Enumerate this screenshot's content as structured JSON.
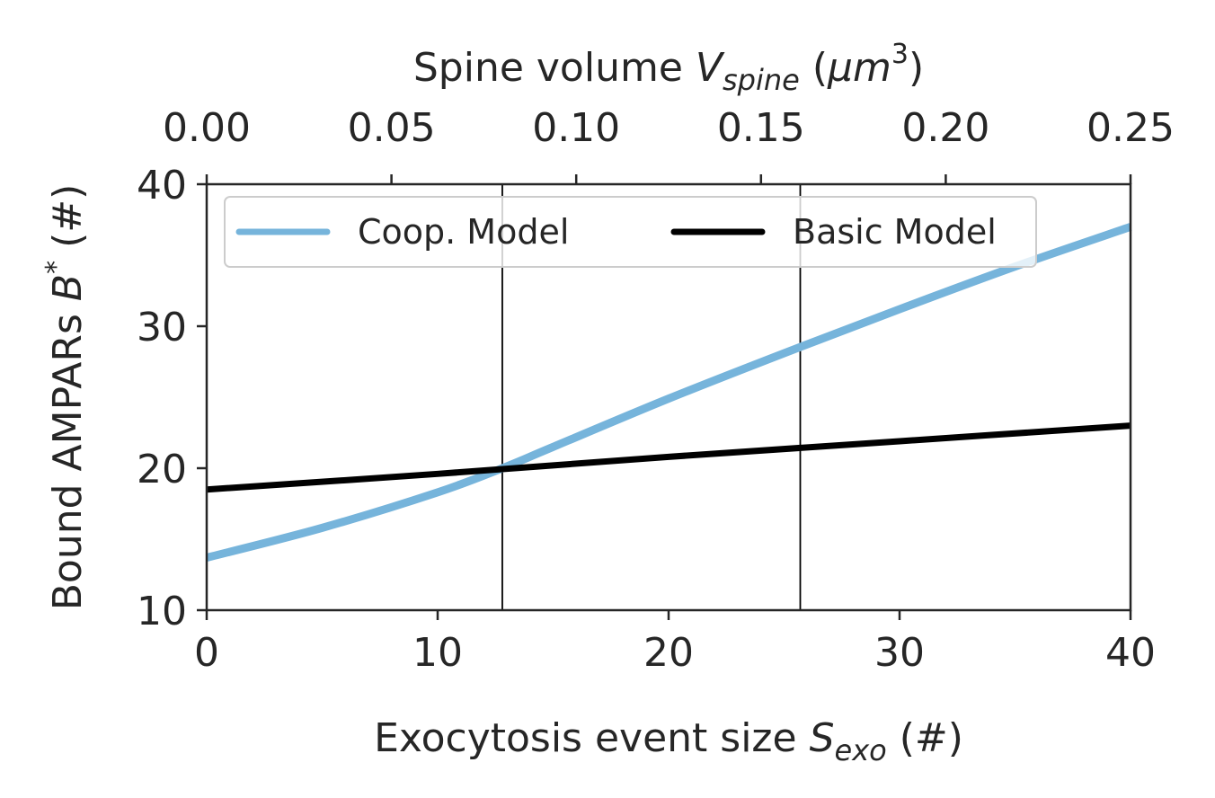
{
  "chart_data": {
    "type": "line",
    "x_label": {
      "prefix": "Exocytosis event size ",
      "var": "S",
      "sub": "exo",
      "suffix": " (#)"
    },
    "x2_label": {
      "prefix": "Spine volume ",
      "var": "V",
      "sub": "spine",
      "open": " (",
      "mu": "μ",
      "m": "m",
      "sup": "3",
      "close": ")"
    },
    "y_label": {
      "prefix": "Bound AMPARs ",
      "var": "B",
      "sup": "*",
      "suffix": " (#)"
    },
    "xlim": [
      0,
      40
    ],
    "x2lim": [
      0,
      0.25
    ],
    "ylim": [
      10,
      40
    ],
    "x_ticks": [
      "0",
      "10",
      "20",
      "30",
      "40"
    ],
    "x2_ticks": [
      "0.00",
      "0.05",
      "0.10",
      "0.15",
      "0.20",
      "0.25"
    ],
    "y_ticks": [
      "10",
      "20",
      "30",
      "40"
    ],
    "vlines": [
      12.8,
      25.7
    ],
    "series": [
      {
        "name": "Coop. Model",
        "color": "#76b4db",
        "x": [
          0,
          5,
          10,
          12.8,
          15,
          20,
          25,
          30,
          35,
          40
        ],
        "y": [
          13.7,
          15.8,
          18.3,
          20.0,
          21.5,
          24.9,
          28.1,
          31.2,
          34.2,
          37.0
        ]
      },
      {
        "name": "Basic Model",
        "color": "#000000",
        "x": [
          0,
          10,
          20,
          30,
          40
        ],
        "y": [
          18.5,
          19.6,
          20.8,
          21.9,
          23.0
        ]
      }
    ],
    "legend_position": "upper center",
    "grid": false
  }
}
